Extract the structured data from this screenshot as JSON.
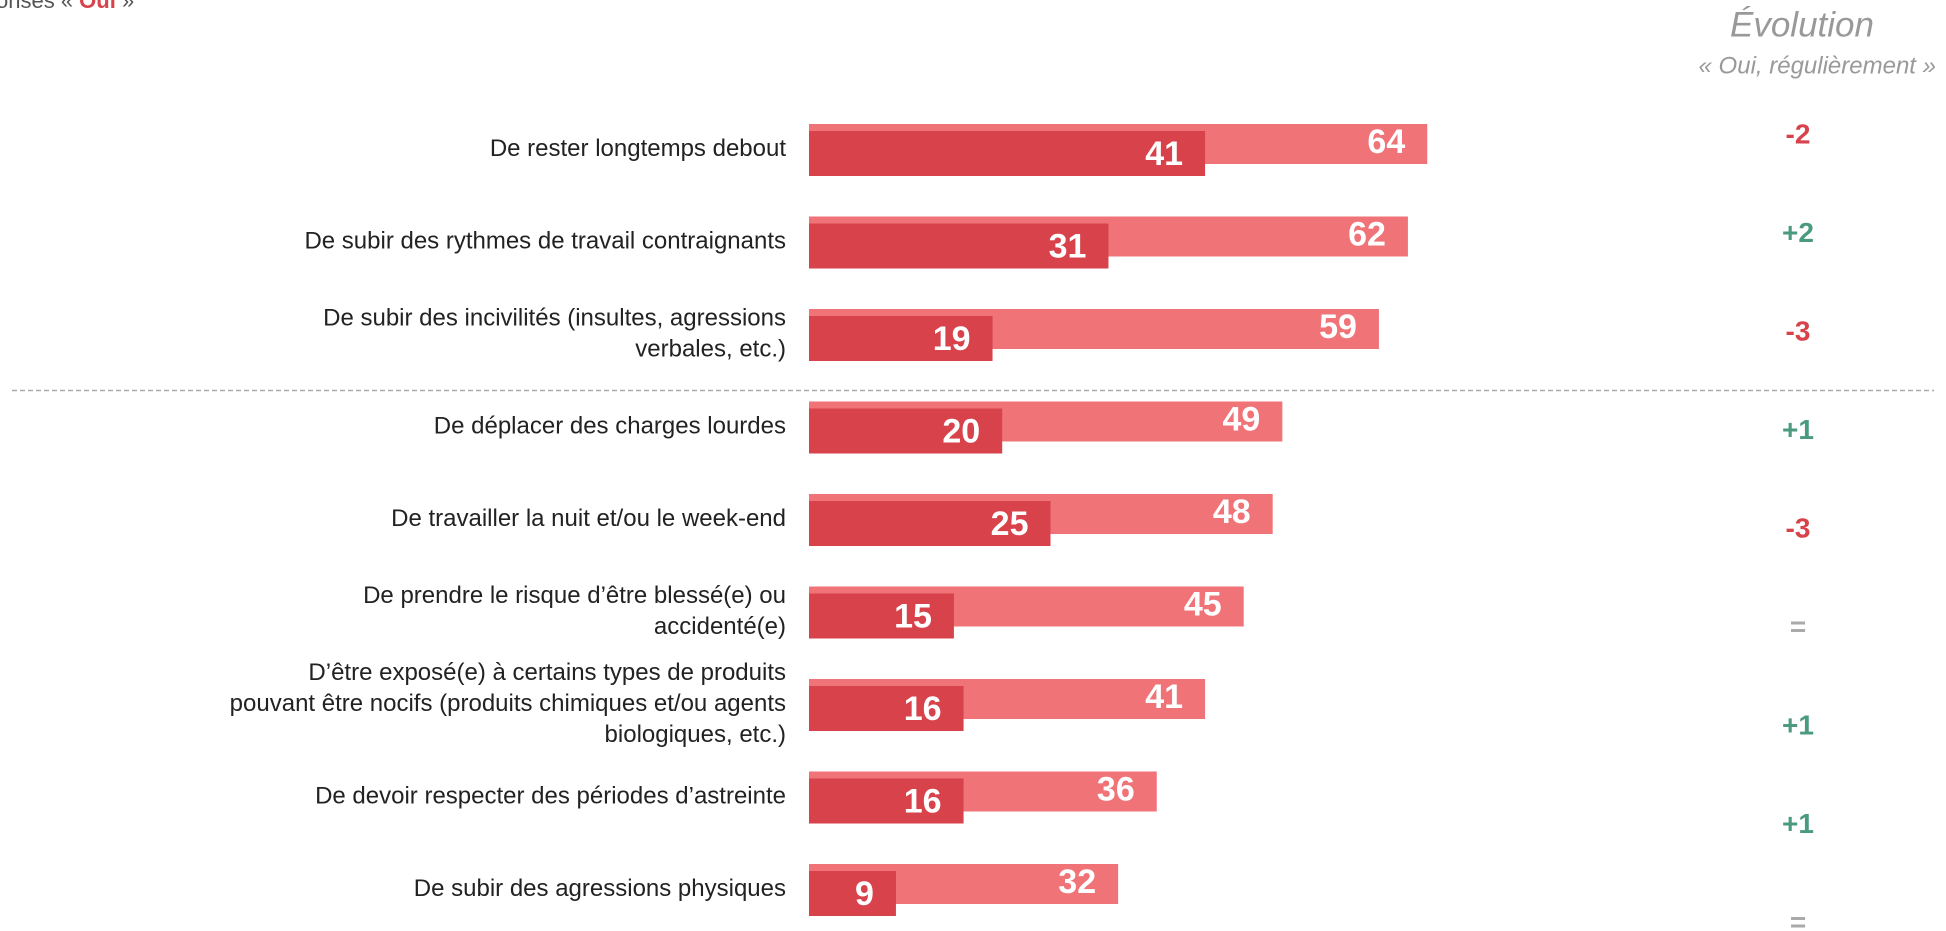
{
  "chart_data": {
    "type": "bar",
    "subtitle_parts": [
      "onses « ",
      "Oui",
      " »"
    ],
    "evolution_title": "Évolution",
    "evolution_subtitle": "« Oui, régulièrement »",
    "categories": [
      "De rester longtemps debout",
      "De subir des rythmes de travail contraignants",
      "De subir des incivilités (insultes, agressions\nverbales, etc.)",
      "De déplacer des charges lourdes",
      "De travailler la nuit et/ou le week-end",
      "De prendre le risque d’être blessé(e) ou\naccidenté(e)",
      "D’être exposé(e) à certains types de produits\npouvant être nocifs (produits chimiques et/ou agents\nbiologiques, etc.)",
      "De devoir respecter des périodes d’astreinte",
      "De subir des agressions physiques"
    ],
    "series": [
      {
        "color": "#f07378",
        "values": [
          64,
          62,
          59,
          49,
          48,
          45,
          41,
          36,
          32
        ]
      },
      {
        "color": "#d7424b",
        "values": [
          41,
          31,
          19,
          20,
          25,
          15,
          16,
          16,
          9
        ]
      }
    ],
    "evolution": [
      "-2",
      "+2",
      "-3",
      "+1",
      "-3",
      "=",
      "+1",
      "+1",
      "="
    ],
    "xlim": [
      0,
      100
    ],
    "separator_after": 3
  }
}
